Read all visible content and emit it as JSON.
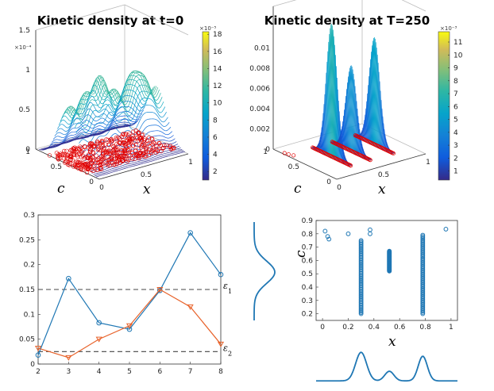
{
  "chart_data": [
    {
      "id": "panel_a",
      "type": "surface3d",
      "title": "Kinetic density at t=0",
      "xlabel": "x",
      "ylabel": "c",
      "zlim": [
        0,
        0.00018
      ],
      "z_ticks": [
        "0",
        "0.5",
        "1",
        "1.5"
      ],
      "z_exponent": "×10⁻⁴",
      "x_ticks": [
        "0",
        "0.5",
        "1"
      ],
      "c_ticks": [
        "0",
        "0.5",
        "1"
      ],
      "colorbar": {
        "ticks": [
          "2",
          "4",
          "6",
          "8",
          "10",
          "12",
          "14",
          "16",
          "18"
        ],
        "exponent": "×10⁻⁵",
        "range": [
          1,
          18.3
        ]
      },
      "description_peaks": [
        0.08,
        0.35,
        0.55,
        0.78
      ],
      "sample_points": {
        "color": "#e00000",
        "marker": "circle",
        "c_range": [
          0.2,
          0.8
        ],
        "x_range": [
          0,
          1
        ]
      }
    },
    {
      "id": "panel_b",
      "type": "surface3d",
      "title": "Kinetic density at T=250",
      "xlabel": "x",
      "ylabel": "c",
      "zlim": [
        0,
        0.012
      ],
      "z_ticks": [
        "0",
        "0.002",
        "0.004",
        "0.006",
        "0.008",
        "0.01"
      ],
      "x_ticks": [
        "0",
        "0.5",
        "1"
      ],
      "c_ticks": [
        "0",
        "0.5",
        "1"
      ],
      "colorbar": {
        "ticks": [
          "1",
          "2",
          "3",
          "4",
          "5",
          "6",
          "7",
          "8",
          "9",
          "10",
          "11"
        ],
        "exponent": "×10⁻³",
        "range": [
          0.3,
          11.8
        ]
      },
      "clusters_x": [
        0.3,
        0.52,
        0.78
      ]
    },
    {
      "id": "panel_c",
      "type": "line",
      "x": [
        2,
        3,
        4,
        5,
        6,
        7,
        8
      ],
      "xlim": [
        2,
        8
      ],
      "ylim": [
        0,
        0.3
      ],
      "x_ticks": [
        "2",
        "3",
        "4",
        "5",
        "6",
        "7",
        "8"
      ],
      "y_ticks": [
        "0",
        "0.05",
        "0.1",
        "0.15",
        "0.2",
        "0.25",
        "0.3"
      ],
      "series": [
        {
          "name": "epsilon_1_curve",
          "color": "#1f77b4",
          "marker": "circle",
          "values": [
            0.018,
            0.172,
            0.083,
            0.07,
            0.148,
            0.264,
            0.18
          ]
        },
        {
          "name": "epsilon_2_curve",
          "color": "#e8622a",
          "marker": "triangle-down",
          "values": [
            0.032,
            0.013,
            0.05,
            0.077,
            0.15,
            0.115,
            0.04
          ]
        }
      ],
      "reference_lines": [
        {
          "y": 0.15,
          "label": "ε",
          "sub": "1"
        },
        {
          "y": 0.025,
          "label": "ε",
          "sub": "2"
        }
      ]
    },
    {
      "id": "panel_d",
      "type": "scatter",
      "xlabel": "x",
      "ylabel": "c",
      "xlim": [
        -0.05,
        1.05
      ],
      "ylim": [
        0.15,
        0.9
      ],
      "x_ticks": [
        "0",
        "0.2",
        "0.4",
        "0.6",
        "0.8",
        "1"
      ],
      "y_ticks": [
        "0.2",
        "0.3",
        "0.4",
        "0.5",
        "0.6",
        "0.7",
        "0.8",
        "0.9"
      ],
      "points": [
        [
          0.02,
          0.82
        ],
        [
          0.04,
          0.78
        ],
        [
          0.05,
          0.76
        ],
        [
          0.2,
          0.8
        ],
        [
          0.37,
          0.83
        ],
        [
          0.37,
          0.8
        ],
        [
          0.96,
          0.835
        ]
      ],
      "vertical_clusters": [
        {
          "x": 0.3,
          "c_from": 0.2,
          "c_to": 0.75
        },
        {
          "x": 0.52,
          "c_from": 0.52,
          "c_to": 0.67
        },
        {
          "x": 0.78,
          "c_from": 0.2,
          "c_to": 0.79
        }
      ],
      "marginal_c_peak": 0.52,
      "marginal_x_peaks": [
        0.3,
        0.52,
        0.78
      ]
    }
  ]
}
